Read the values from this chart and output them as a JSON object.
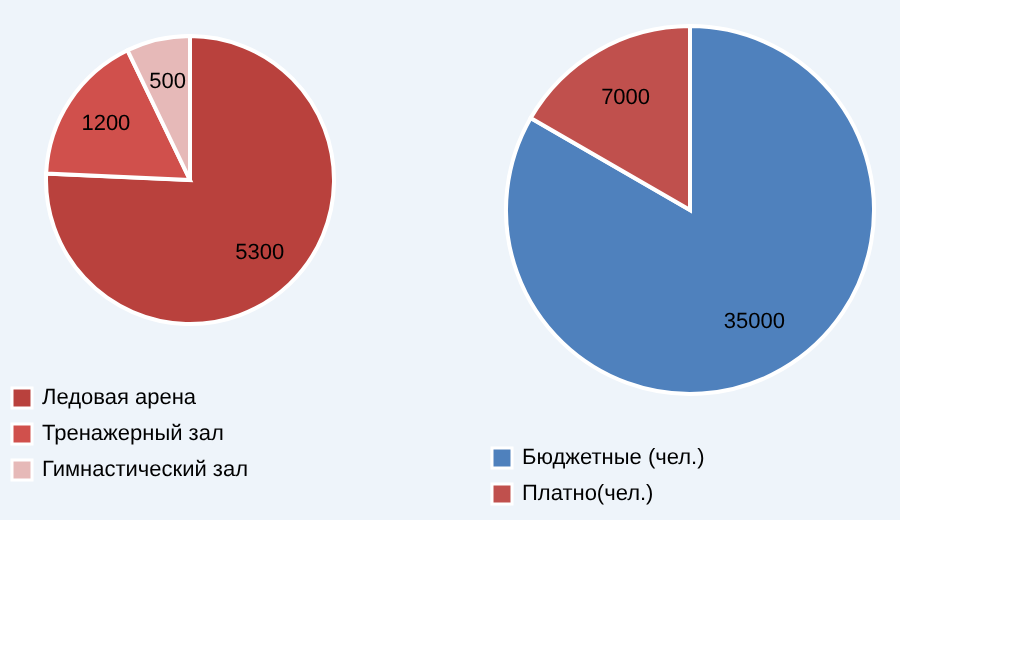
{
  "chart_data": [
    {
      "type": "pie",
      "categories": [
        "Ледовая арена",
        "Тренажерный зал",
        "Гимнастический зал"
      ],
      "values": [
        5300,
        1200,
        500
      ],
      "colors": [
        "#b9413d",
        "#d0504c",
        "#e6b9b8"
      ],
      "data_labels": true,
      "legend": "bottom"
    },
    {
      "type": "pie",
      "categories": [
        "Бюджетные (чел.)",
        "Платно(чел.)"
      ],
      "values": [
        35000,
        7000
      ],
      "colors": [
        "#4f81bd",
        "#c0504d"
      ],
      "data_labels": true,
      "legend": "bottom"
    }
  ]
}
